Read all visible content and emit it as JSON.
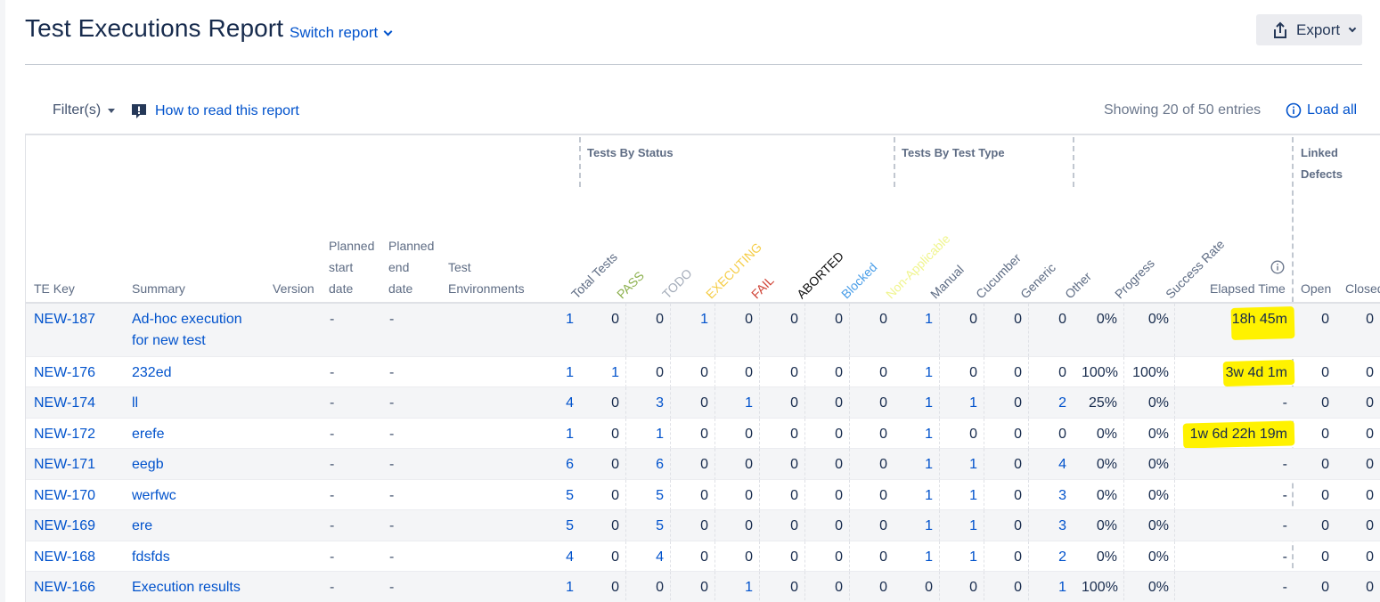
{
  "header": {
    "title": "Test Executions Report",
    "switch_label": "Switch report",
    "export_label": "Export"
  },
  "toolbar": {
    "filters_label": "Filter(s)",
    "howto_label": "How to read this report",
    "showing_text": "Showing 20 of 50 entries",
    "load_all_label": "Load all"
  },
  "table": {
    "groups": {
      "status": "Tests By Status",
      "type": "Tests By Test Type",
      "defects_line1": "Linked",
      "defects_line2": "Defects"
    },
    "headers": {
      "te_key": "TE Key",
      "summary": "Summary",
      "version": "Version",
      "planned_start": [
        "Planned",
        "start",
        "date"
      ],
      "planned_end": [
        "Planned",
        "end",
        "date"
      ],
      "test_env": [
        "Test",
        "Environments"
      ],
      "total_tests": "Total Tests",
      "pass": "PASS",
      "todo": "TODO",
      "executing": "EXECUTING",
      "fail": "FAIL",
      "aborted": "ABORTED",
      "blocked": "Blocked",
      "non_applicable": "Non-Applicable",
      "manual": "Manual",
      "cucumber": "Cucumber",
      "generic": "Generic",
      "other": "Other",
      "progress": "Progress",
      "success_rate": "Success Rate",
      "elapsed_time": "Elapsed Time",
      "open": "Open",
      "closed": "Closed"
    },
    "status_colors": {
      "pass": "#8db14f",
      "todo": "#a5adba",
      "executing": "#f5cd47",
      "fail": "#d04437",
      "aborted": "#111111",
      "blocked": "#4a9ee8",
      "non_applicable": "#f0f58f"
    },
    "rows": [
      {
        "key": "NEW-187",
        "summary": [
          "Ad-hoc execution",
          "for new test"
        ],
        "version": "",
        "start": "-",
        "end": "-",
        "env": "",
        "total": "1",
        "pass": "0",
        "todo": "0",
        "executing": "1",
        "fail": "0",
        "aborted": "0",
        "blocked": "0",
        "na": "0",
        "manual": "1",
        "cucumber": "0",
        "generic": "0",
        "other": "0",
        "progress": "0%",
        "success": "0%",
        "elapsed": "18h 45m",
        "open": "0",
        "closed": "0"
      },
      {
        "key": "NEW-176",
        "summary": [
          "232ed"
        ],
        "version": "",
        "start": "-",
        "end": "-",
        "env": "",
        "total": "1",
        "pass": "1",
        "todo": "0",
        "executing": "0",
        "fail": "0",
        "aborted": "0",
        "blocked": "0",
        "na": "0",
        "manual": "1",
        "cucumber": "0",
        "generic": "0",
        "other": "0",
        "progress": "100%",
        "success": "100%",
        "elapsed": "3w 4d 1m",
        "open": "0",
        "closed": "0"
      },
      {
        "key": "NEW-174",
        "summary": [
          "ll"
        ],
        "version": "",
        "start": "-",
        "end": "-",
        "env": "",
        "total": "4",
        "pass": "0",
        "todo": "3",
        "executing": "0",
        "fail": "1",
        "aborted": "0",
        "blocked": "0",
        "na": "0",
        "manual": "1",
        "cucumber": "1",
        "generic": "0",
        "other": "2",
        "progress": "25%",
        "success": "0%",
        "elapsed": "-",
        "open": "0",
        "closed": "0"
      },
      {
        "key": "NEW-172",
        "summary": [
          "erefe"
        ],
        "version": "",
        "start": "-",
        "end": "-",
        "env": "",
        "total": "1",
        "pass": "0",
        "todo": "1",
        "executing": "0",
        "fail": "0",
        "aborted": "0",
        "blocked": "0",
        "na": "0",
        "manual": "1",
        "cucumber": "0",
        "generic": "0",
        "other": "0",
        "progress": "0%",
        "success": "0%",
        "elapsed": "1w 6d 22h 19m",
        "open": "0",
        "closed": "0"
      },
      {
        "key": "NEW-171",
        "summary": [
          "eegb"
        ],
        "version": "",
        "start": "-",
        "end": "-",
        "env": "",
        "total": "6",
        "pass": "0",
        "todo": "6",
        "executing": "0",
        "fail": "0",
        "aborted": "0",
        "blocked": "0",
        "na": "0",
        "manual": "1",
        "cucumber": "1",
        "generic": "0",
        "other": "4",
        "progress": "0%",
        "success": "0%",
        "elapsed": "-",
        "open": "0",
        "closed": "0"
      },
      {
        "key": "NEW-170",
        "summary": [
          "werfwc"
        ],
        "version": "",
        "start": "-",
        "end": "-",
        "env": "",
        "total": "5",
        "pass": "0",
        "todo": "5",
        "executing": "0",
        "fail": "0",
        "aborted": "0",
        "blocked": "0",
        "na": "0",
        "manual": "1",
        "cucumber": "1",
        "generic": "0",
        "other": "3",
        "progress": "0%",
        "success": "0%",
        "elapsed": "-",
        "open": "0",
        "closed": "0"
      },
      {
        "key": "NEW-169",
        "summary": [
          "ere"
        ],
        "version": "",
        "start": "-",
        "end": "-",
        "env": "",
        "total": "5",
        "pass": "0",
        "todo": "5",
        "executing": "0",
        "fail": "0",
        "aborted": "0",
        "blocked": "0",
        "na": "0",
        "manual": "1",
        "cucumber": "1",
        "generic": "0",
        "other": "3",
        "progress": "0%",
        "success": "0%",
        "elapsed": "-",
        "open": "0",
        "closed": "0"
      },
      {
        "key": "NEW-168",
        "summary": [
          "fdsfds"
        ],
        "version": "",
        "start": "-",
        "end": "-",
        "env": "",
        "total": "4",
        "pass": "0",
        "todo": "4",
        "executing": "0",
        "fail": "0",
        "aborted": "0",
        "blocked": "0",
        "na": "0",
        "manual": "1",
        "cucumber": "1",
        "generic": "0",
        "other": "2",
        "progress": "0%",
        "success": "0%",
        "elapsed": "-",
        "open": "0",
        "closed": "0"
      },
      {
        "key": "NEW-166",
        "summary": [
          "Execution results"
        ],
        "version": "",
        "start": "-",
        "end": "-",
        "env": "",
        "total": "1",
        "pass": "0",
        "todo": "0",
        "executing": "0",
        "fail": "1",
        "aborted": "0",
        "blocked": "0",
        "na": "0",
        "manual": "0",
        "cucumber": "0",
        "generic": "0",
        "other": "1",
        "progress": "100%",
        "success": "0%",
        "elapsed": "-",
        "open": "0",
        "closed": "0"
      }
    ]
  },
  "icons": {
    "export": "export-upload-icon",
    "filters_caret": "caret-down-icon",
    "howto": "speech-bubble-exclamation-icon",
    "load_all": "info-circle-icon",
    "elapsed_info": "info-circle-icon"
  },
  "colors": {
    "link": "#0052cc",
    "highlight": "#fff200"
  }
}
